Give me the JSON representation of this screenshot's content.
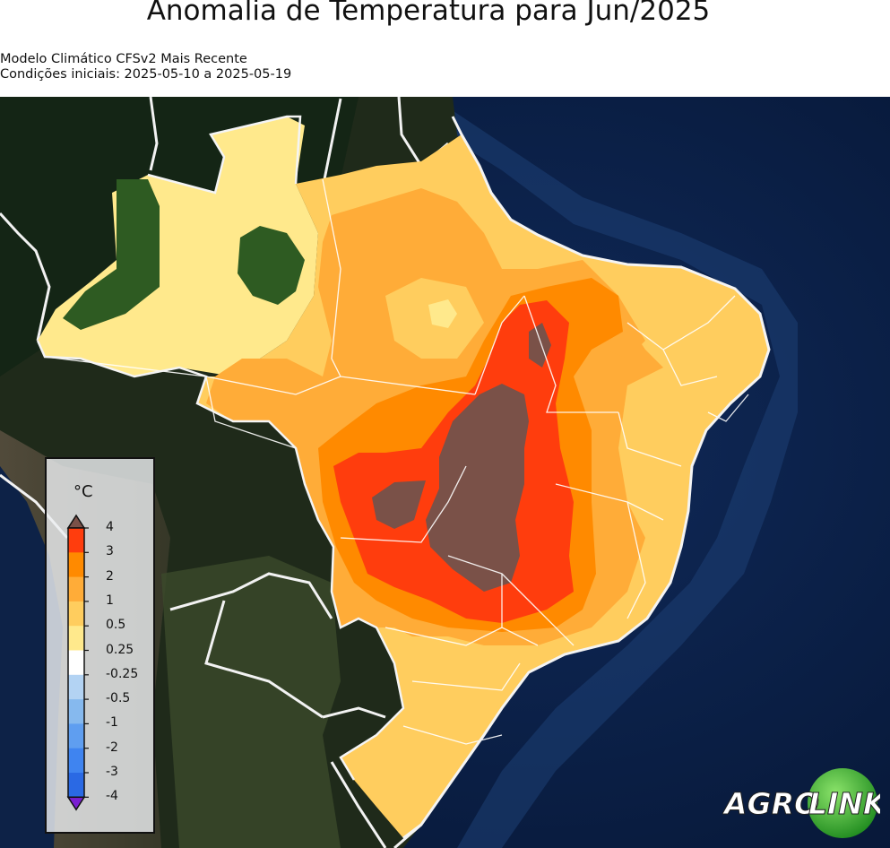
{
  "title": "Anomalia de Temperatura para Jun/2025",
  "subtitle_model": "Modelo Climático CFSv2 Mais Recente",
  "subtitle_conditions": "Condições iniciais: 2025-05-10 a 2025-05-19",
  "colorbar": {
    "unit": "°C",
    "tick_labels": [
      "4",
      "3",
      "2",
      "1",
      "0.5",
      "0.25",
      "-0.25",
      "-0.5",
      "-1",
      "-2",
      "-3",
      "-4"
    ],
    "bins": [
      {
        "from": 3,
        "to": 4,
        "color": "#ff3d0d"
      },
      {
        "from": 2,
        "to": 3,
        "color": "#ff8a00"
      },
      {
        "from": 1,
        "to": 2,
        "color": "#ffac38"
      },
      {
        "from": 0.5,
        "to": 1,
        "color": "#ffcd5e"
      },
      {
        "from": 0.25,
        "to": 0.5,
        "color": "#ffe98c"
      },
      {
        "from": -0.25,
        "to": 0.25,
        "color": "#ffffff"
      },
      {
        "from": -0.5,
        "to": -0.25,
        "color": "#b3d3f3"
      },
      {
        "from": -1,
        "to": -0.5,
        "color": "#86b9ee"
      },
      {
        "from": -2,
        "to": -1,
        "color": "#5f9ef0"
      },
      {
        "from": -3,
        "to": -2,
        "color": "#3f84f0"
      },
      {
        "from": -4,
        "to": -3,
        "color": "#2a69e4"
      }
    ],
    "over_color": "#7a5148",
    "under_color": "#7a1fd1"
  },
  "logo": {
    "left_text": "AGRO",
    "right_text": "LINK"
  }
}
